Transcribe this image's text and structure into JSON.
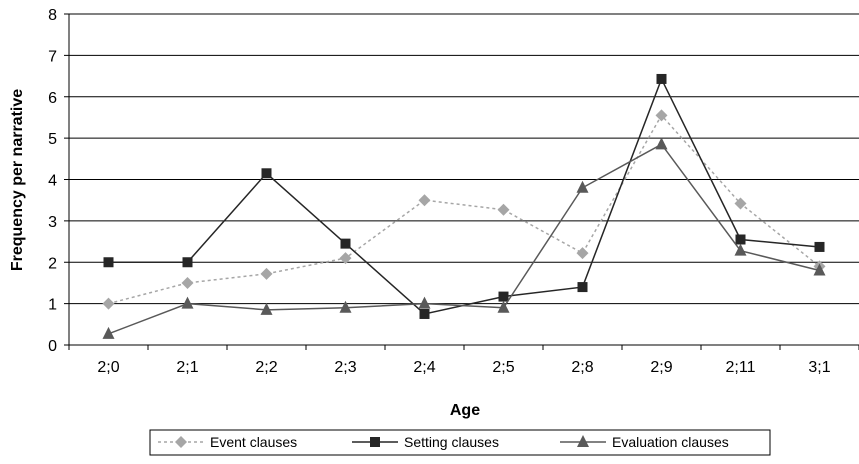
{
  "chart_data": {
    "type": "line",
    "title": "",
    "xlabel": "Age",
    "ylabel": "Frequency per narrative",
    "categories": [
      "2;0",
      "2;1",
      "2;2",
      "2;3",
      "2;4",
      "2;5",
      "2;8",
      "2;9",
      "2;11",
      "3;1"
    ],
    "ylim": [
      0,
      8
    ],
    "yticks": [
      0,
      1,
      2,
      3,
      4,
      5,
      6,
      7,
      8
    ],
    "grid": "horizontal",
    "legend_position": "bottom",
    "series": [
      {
        "name": "Event clauses",
        "marker": "diamond",
        "line_style": "dotted",
        "color": "#a6a6a6",
        "values": [
          1.0,
          1.5,
          1.72,
          2.1,
          3.5,
          3.27,
          2.22,
          5.55,
          3.42,
          1.9
        ]
      },
      {
        "name": "Setting clauses",
        "marker": "square",
        "line_style": "solid",
        "color": "#262626",
        "values": [
          2.0,
          2.0,
          4.15,
          2.45,
          0.75,
          1.17,
          1.4,
          6.43,
          2.55,
          2.37
        ]
      },
      {
        "name": "Evaluation clauses",
        "marker": "triangle",
        "line_style": "solid",
        "color": "#595959",
        "values": [
          0.27,
          1.0,
          0.85,
          0.9,
          1.0,
          0.9,
          3.8,
          4.85,
          2.28,
          1.8
        ]
      }
    ]
  }
}
